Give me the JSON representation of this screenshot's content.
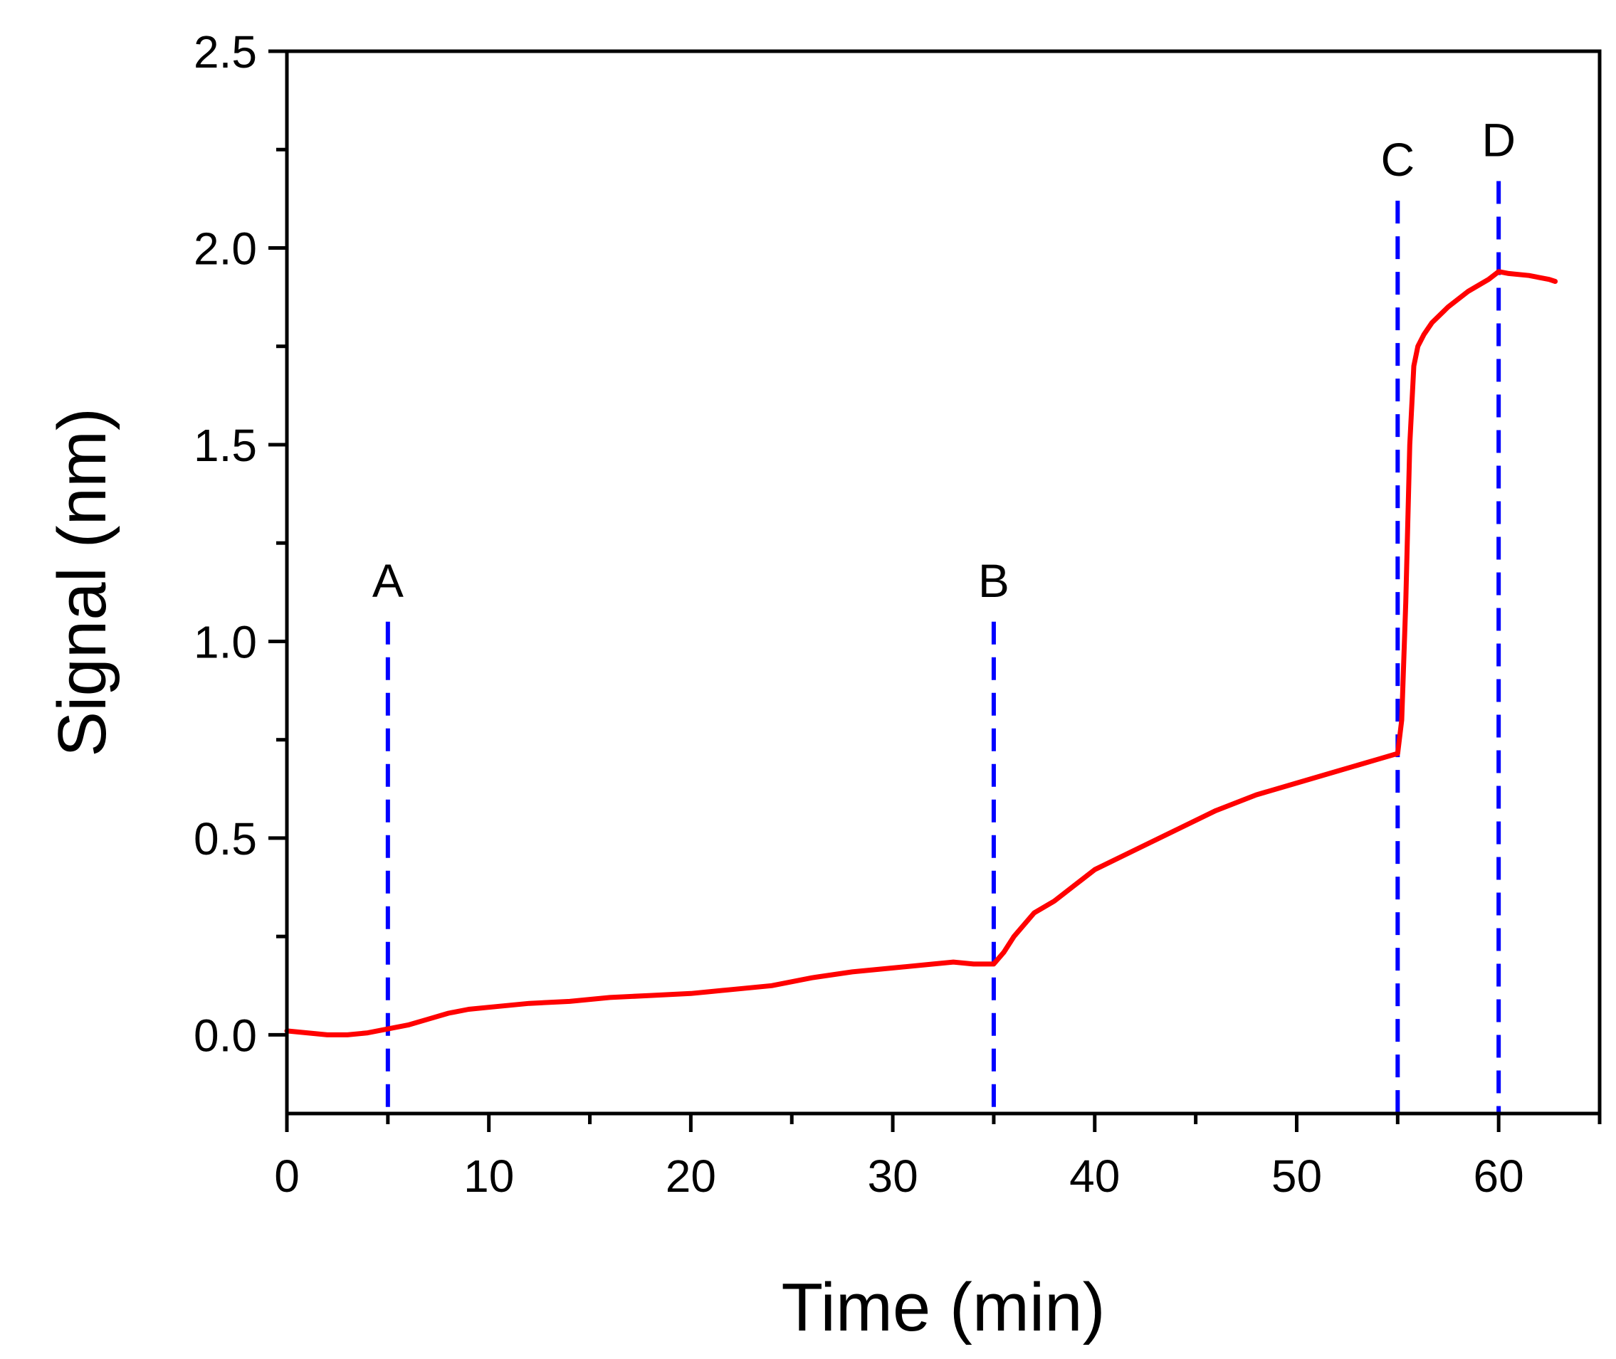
{
  "chart_data": {
    "type": "line",
    "title": "",
    "xlabel": "Time (min)",
    "ylabel": "Signal (nm)",
    "xlim": [
      0,
      65
    ],
    "ylim": [
      -0.2,
      2.5
    ],
    "xticks": [
      0,
      10,
      20,
      30,
      40,
      50,
      60
    ],
    "xtick_labels": [
      "0",
      "10",
      "20",
      "30",
      "40",
      "50",
      "60"
    ],
    "yticks": [
      0.0,
      0.5,
      1.0,
      1.5,
      2.0,
      2.5
    ],
    "ytick_labels": [
      "0.0",
      "0.5",
      "1.0",
      "1.5",
      "2.0",
      "2.5"
    ],
    "grid": false,
    "series": [
      {
        "name": "Signal",
        "color": "#ff0000",
        "x": [
          0,
          1,
          2,
          3,
          4,
          5,
          6,
          7,
          8,
          9,
          10,
          12,
          14,
          16,
          18,
          20,
          22,
          24,
          26,
          28,
          30,
          32,
          33,
          34,
          35,
          35.5,
          36,
          37,
          38,
          39,
          40,
          42,
          44,
          46,
          48,
          50,
          52,
          54,
          55,
          55.2,
          55.4,
          55.6,
          55.8,
          56,
          56.3,
          56.7,
          57.5,
          58.5,
          59.5,
          60,
          60.5,
          61.5,
          62.5,
          62.8
        ],
        "y": [
          0.01,
          0.005,
          0.0,
          0.0,
          0.005,
          0.015,
          0.025,
          0.04,
          0.055,
          0.065,
          0.07,
          0.08,
          0.085,
          0.095,
          0.1,
          0.105,
          0.115,
          0.125,
          0.145,
          0.16,
          0.17,
          0.18,
          0.185,
          0.18,
          0.18,
          0.21,
          0.25,
          0.31,
          0.34,
          0.38,
          0.42,
          0.47,
          0.52,
          0.57,
          0.61,
          0.64,
          0.67,
          0.7,
          0.715,
          0.8,
          1.1,
          1.5,
          1.7,
          1.75,
          1.78,
          1.81,
          1.85,
          1.89,
          1.92,
          1.94,
          1.935,
          1.93,
          1.92,
          1.915
        ]
      }
    ],
    "markers": [
      {
        "label": "A",
        "x": 5,
        "y_top": 1.05,
        "color": "#0000ff"
      },
      {
        "label": "B",
        "x": 35,
        "y_top": 1.05,
        "color": "#0000ff"
      },
      {
        "label": "C",
        "x": 55,
        "y_top": 2.12,
        "color": "#0000ff"
      },
      {
        "label": "D",
        "x": 60,
        "y_top": 2.17,
        "color": "#0000ff"
      }
    ]
  }
}
